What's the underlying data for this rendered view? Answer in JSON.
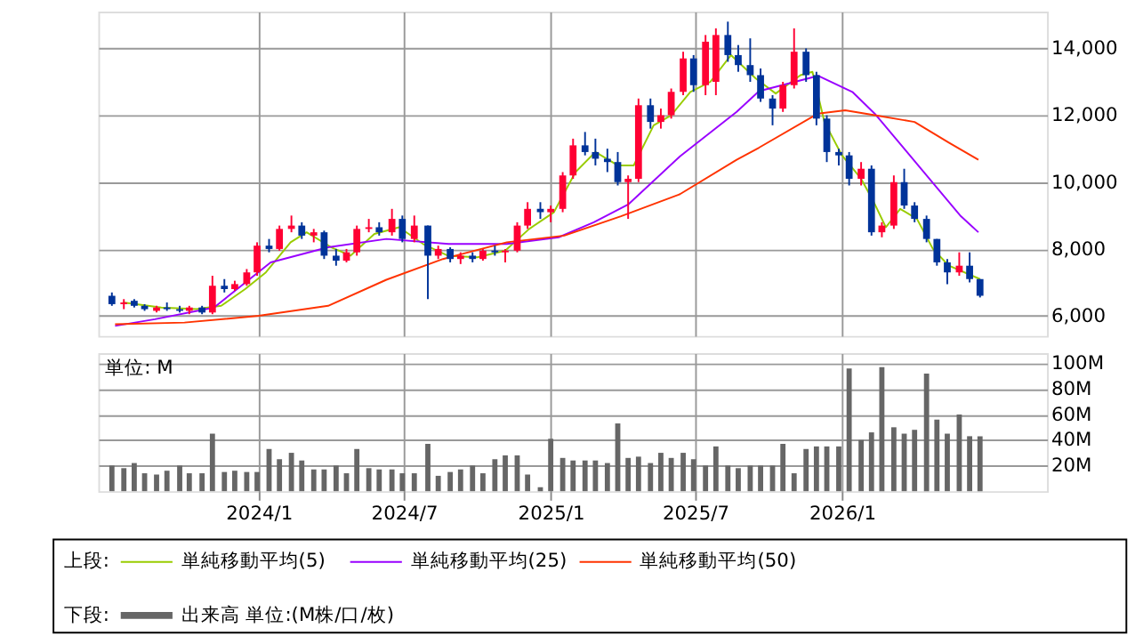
{
  "chart_data": [
    {
      "type": "candlestick",
      "legend": "bottom",
      "legend_title": "上段:",
      "grid": true,
      "tick_labels": "y",
      "x": [
        "2023-07-01",
        "2023-07-16",
        "2023-07-29",
        "2023-08-11",
        "2023-08-26",
        "2023-09-08",
        "2023-09-24",
        "2023-10-06",
        "2023-10-22",
        "2023-11-04",
        "2023-11-19",
        "2023-12-02",
        "2023-12-17",
        "2023-12-30",
        "2024-01-14",
        "2024-01-27",
        "2024-02-11",
        "2024-02-24",
        "2024-03-10",
        "2024-03-23",
        "2024-04-07",
        "2024-04-20",
        "2024-05-03",
        "2024-05-18",
        "2024-05-31",
        "2024-06-16",
        "2024-06-29",
        "2024-07-14",
        "2024-07-31",
        "2024-08-13",
        "2024-08-28",
        "2024-09-10",
        "2024-09-25",
        "2024-10-08",
        "2024-10-23",
        "2024-11-05",
        "2024-11-20",
        "2024-12-03",
        "2024-12-19",
        "2025-01-01",
        "2025-01-16",
        "2025-01-29",
        "2025-02-13",
        "2025-02-26",
        "2025-03-13",
        "2025-03-26",
        "2025-04-08",
        "2025-04-21",
        "2025-05-06",
        "2025-05-19",
        "2025-06-01",
        "2025-06-16",
        "2025-06-29",
        "2025-07-14",
        "2025-07-27",
        "2025-08-11",
        "2025-08-24",
        "2025-09-08",
        "2025-09-21",
        "2025-10-06",
        "2025-10-19",
        "2025-11-02",
        "2025-11-17",
        "2025-11-30",
        "2025-12-13",
        "2025-12-28",
        "2026-01-10",
        "2026-01-25",
        "2026-02-07",
        "2026-02-20",
        "2026-03-07",
        "2026-03-20",
        "2026-04-02",
        "2026-04-17",
        "2026-04-30",
        "2026-05-13",
        "2026-05-28",
        "2026-06-10",
        "2026-06-23"
      ],
      "ohlc": [
        [
          6600,
          6700,
          6300,
          6350
        ],
        [
          6350,
          6500,
          6200,
          6400
        ],
        [
          6450,
          6500,
          6250,
          6300
        ],
        [
          6300,
          6350,
          6150,
          6200
        ],
        [
          6150,
          6300,
          6100,
          6250
        ],
        [
          6250,
          6400,
          6150,
          6200
        ],
        [
          6200,
          6300,
          6100,
          6150
        ],
        [
          6150,
          6300,
          6050,
          6250
        ],
        [
          6250,
          6300,
          6050,
          6100
        ],
        [
          6100,
          7200,
          6050,
          6900
        ],
        [
          6900,
          7100,
          6700,
          6800
        ],
        [
          6800,
          7050,
          6750,
          6950
        ],
        [
          6950,
          7400,
          6900,
          7300
        ],
        [
          7300,
          8200,
          7200,
          8100
        ],
        [
          8100,
          8300,
          7900,
          8000
        ],
        [
          8000,
          8700,
          7950,
          8600
        ],
        [
          8600,
          9000,
          8500,
          8700
        ],
        [
          8700,
          8800,
          8300,
          8400
        ],
        [
          8400,
          8600,
          8200,
          8500
        ],
        [
          8500,
          8550,
          7700,
          7800
        ],
        [
          7800,
          8000,
          7500,
          7650
        ],
        [
          7650,
          8000,
          7600,
          7900
        ],
        [
          7900,
          8700,
          7800,
          8600
        ],
        [
          8600,
          8900,
          8500,
          8650
        ],
        [
          8650,
          8800,
          8400,
          8500
        ],
        [
          8500,
          9200,
          8400,
          8900
        ],
        [
          8900,
          9000,
          8200,
          8300
        ],
        [
          8300,
          9000,
          8200,
          8700
        ],
        [
          8700,
          8700,
          6500,
          7800
        ],
        [
          7800,
          8100,
          7700,
          8000
        ],
        [
          8000,
          8050,
          7600,
          7700
        ],
        [
          7700,
          7900,
          7550,
          7800
        ],
        [
          7800,
          7900,
          7600,
          7700
        ],
        [
          7700,
          8000,
          7650,
          7950
        ],
        [
          7950,
          8100,
          7800,
          7900
        ],
        [
          7900,
          8000,
          7600,
          7950
        ],
        [
          7950,
          8800,
          7900,
          8700
        ],
        [
          8700,
          9400,
          8600,
          9200
        ],
        [
          9200,
          9400,
          8900,
          9100
        ],
        [
          9100,
          9300,
          8800,
          9200
        ],
        [
          9200,
          10300,
          9100,
          10200
        ],
        [
          10200,
          11300,
          10100,
          11100
        ],
        [
          11100,
          11500,
          10800,
          10900
        ],
        [
          10900,
          11300,
          10500,
          10700
        ],
        [
          10700,
          11000,
          10300,
          10600
        ],
        [
          10600,
          10900,
          9900,
          10000
        ],
        [
          10000,
          10200,
          8900,
          10100
        ],
        [
          10100,
          12500,
          10000,
          12300
        ],
        [
          12300,
          12500,
          11600,
          11800
        ],
        [
          11800,
          12200,
          11600,
          12000
        ],
        [
          12000,
          12800,
          11900,
          12700
        ],
        [
          12700,
          13900,
          12600,
          13700
        ],
        [
          13700,
          13800,
          12700,
          12900
        ],
        [
          12900,
          14400,
          12600,
          14200
        ],
        [
          13000,
          14600,
          12600,
          14400
        ],
        [
          14400,
          14800,
          13600,
          13800
        ],
        [
          13800,
          14100,
          13300,
          13500
        ],
        [
          13500,
          14300,
          13000,
          13200
        ],
        [
          13200,
          13400,
          12400,
          12500
        ],
        [
          12500,
          12600,
          11700,
          12200
        ],
        [
          12200,
          13000,
          12100,
          12900
        ],
        [
          12900,
          14600,
          12800,
          13900
        ],
        [
          13900,
          14000,
          13000,
          13200
        ],
        [
          13200,
          13300,
          11700,
          11900
        ],
        [
          11900,
          12000,
          10600,
          10900
        ],
        [
          10900,
          11000,
          10500,
          10800
        ],
        [
          10800,
          10900,
          9900,
          10100
        ],
        [
          10100,
          10600,
          9900,
          10400
        ],
        [
          10400,
          10500,
          8400,
          8500
        ],
        [
          8500,
          8800,
          8350,
          8700
        ],
        [
          8700,
          10200,
          8600,
          10000
        ],
        [
          10000,
          10400,
          9200,
          9300
        ],
        [
          9300,
          9400,
          8800,
          8900
        ],
        [
          8900,
          9000,
          8200,
          8300
        ],
        [
          8300,
          8300,
          7500,
          7600
        ],
        [
          7600,
          7700,
          6950,
          7300
        ],
        [
          7300,
          7900,
          7200,
          7500
        ],
        [
          7500,
          7900,
          7000,
          7100
        ],
        [
          7100,
          7100,
          6550,
          6600
        ]
      ],
      "colors": [
        "#003399",
        "#ff0033",
        "#003399",
        "#003399",
        "#ff0033",
        "#003399",
        "#003399",
        "#ff0033",
        "#003399",
        "#ff0033",
        "#003399",
        "#ff0033",
        "#ff0033",
        "#ff0033",
        "#003399",
        "#ff0033",
        "#ff0033",
        "#003399",
        "#ff0033",
        "#003399",
        "#003399",
        "#ff0033",
        "#ff0033",
        "#ff0033",
        "#003399",
        "#ff0033",
        "#003399",
        "#ff0033",
        "#003399",
        "#ff0033",
        "#003399",
        "#ff0033",
        "#003399",
        "#ff0033",
        "#003399",
        "#ff0033",
        "#ff0033",
        "#ff0033",
        "#003399",
        "#ff0033",
        "#ff0033",
        "#ff0033",
        "#003399",
        "#003399",
        "#003399",
        "#003399",
        "#ff0033",
        "#ff0033",
        "#003399",
        "#ff0033",
        "#ff0033",
        "#ff0033",
        "#003399",
        "#ff0033",
        "#ff0033",
        "#003399",
        "#003399",
        "#003399",
        "#003399",
        "#003399",
        "#ff0033",
        "#ff0033",
        "#003399",
        "#003399",
        "#003399",
        "#003399",
        "#003399",
        "#ff0033",
        "#003399",
        "#ff0033",
        "#ff0033",
        "#003399",
        "#003399",
        "#003399",
        "#003399",
        "#003399",
        "#ff0033",
        "#003399",
        "#003399"
      ],
      "series": [
        {
          "name": "単純移動平均(5)",
          "type": "line",
          "color": "#99cc00",
          "x": [
            "2023-07-15",
            "2023-09-01",
            "2023-10-15",
            "2023-11-15",
            "2023-12-15",
            "2024-01-10",
            "2024-02-10",
            "2024-03-01",
            "2024-04-01",
            "2024-04-25",
            "2024-05-25",
            "2024-06-25",
            "2024-07-25",
            "2024-08-25",
            "2024-10-01",
            "2024-11-05",
            "2024-12-05",
            "2025-01-05",
            "2025-02-01",
            "2025-02-26",
            "2025-03-26",
            "2025-04-15",
            "2025-05-10",
            "2025-06-01",
            "2025-06-25",
            "2025-07-20",
            "2025-08-15",
            "2025-09-15",
            "2025-10-10",
            "2025-11-10",
            "2025-11-25",
            "2025-12-10",
            "2026-01-01",
            "2026-01-25",
            "2026-02-10",
            "2026-02-25",
            "2026-03-15",
            "2026-04-05",
            "2026-04-25",
            "2026-05-15",
            "2026-06-23"
          ],
          "values": [
            6400,
            6250,
            6200,
            6300,
            6800,
            7300,
            8200,
            8500,
            8050,
            7800,
            8450,
            8650,
            8150,
            7800,
            7750,
            7950,
            8600,
            9100,
            10300,
            10900,
            10500,
            10500,
            11700,
            12000,
            12700,
            13000,
            13800,
            13100,
            12650,
            13200,
            13300,
            11800,
            10800,
            10100,
            9400,
            8650,
            9200,
            8900,
            8000,
            7500,
            7100
          ]
        },
        {
          "name": "単純移動平均(25)",
          "type": "line",
          "color": "#9900ff",
          "x": [
            "2023-07-05",
            "2023-08-24",
            "2023-11-06",
            "2024-01-16",
            "2024-03-28",
            "2024-06-09",
            "2024-08-26",
            "2024-11-07",
            "2025-01-11",
            "2025-02-24",
            "2025-04-08",
            "2025-06-12",
            "2025-08-22",
            "2025-09-19",
            "2025-12-02",
            "2026-01-14",
            "2026-02-11",
            "2026-03-20",
            "2026-04-24",
            "2026-05-30",
            "2026-06-21"
          ],
          "values": [
            5700,
            5900,
            6250,
            7600,
            8050,
            8300,
            8150,
            8150,
            8350,
            8800,
            9330,
            10770,
            12100,
            12720,
            13180,
            12700,
            12050,
            11000,
            10000,
            8980,
            8500
          ]
        },
        {
          "name": "単純移動平均(50)",
          "type": "line",
          "color": "#ff3300",
          "x": [
            "2023-07-05",
            "2023-09-30",
            "2024-01-01",
            "2024-03-28",
            "2024-06-09",
            "2024-08-19",
            "2024-11-07",
            "2025-01-18",
            "2025-03-30",
            "2025-06-12",
            "2025-08-22",
            "2025-09-19",
            "2025-12-02",
            "2026-01-05",
            "2026-02-11",
            "2026-04-02",
            "2026-05-15",
            "2026-06-21"
          ],
          "values": [
            5750,
            5800,
            6000,
            6300,
            7080,
            7700,
            8200,
            8400,
            8980,
            9640,
            10670,
            11030,
            12050,
            12150,
            12000,
            11800,
            11180,
            10670
          ]
        }
      ],
      "xlim": [
        "2023-06-14",
        "2026-09-15"
      ],
      "xticks": [
        {
          "value": "2024-01-01",
          "label": null
        },
        {
          "value": "2024-07-01",
          "label": null
        },
        {
          "value": "2025-01-01",
          "label": null
        },
        {
          "value": "2025-07-01",
          "label": null
        },
        {
          "value": "2026-01-01",
          "label": null
        }
      ],
      "ylim": [
        5400,
        15100
      ],
      "yticks": [
        {
          "value": 6000,
          "label": "6,000"
        },
        {
          "value": 8000,
          "label": "8,000"
        },
        {
          "value": 10000,
          "label": "10,000"
        },
        {
          "value": 12000,
          "label": "12,000"
        },
        {
          "value": 14000,
          "label": "14,000"
        }
      ]
    },
    {
      "type": "bar",
      "legend": "bottom",
      "legend_title": "下段:",
      "grid": true,
      "annotations": [
        "単位: M"
      ],
      "x": [
        "2023-07-01",
        "2023-07-16",
        "2023-07-29",
        "2023-08-11",
        "2023-08-26",
        "2023-09-08",
        "2023-09-24",
        "2023-10-06",
        "2023-10-22",
        "2023-11-04",
        "2023-11-19",
        "2023-12-02",
        "2023-12-17",
        "2023-12-30",
        "2024-01-14",
        "2024-01-27",
        "2024-02-11",
        "2024-02-24",
        "2024-03-10",
        "2024-03-23",
        "2024-04-07",
        "2024-04-20",
        "2024-05-03",
        "2024-05-18",
        "2024-05-31",
        "2024-06-16",
        "2024-06-29",
        "2024-07-14",
        "2024-07-31",
        "2024-08-13",
        "2024-08-28",
        "2024-09-10",
        "2024-09-25",
        "2024-10-08",
        "2024-10-23",
        "2024-11-05",
        "2024-11-20",
        "2024-12-03",
        "2024-12-19",
        "2025-01-01",
        "2025-01-16",
        "2025-01-29",
        "2025-02-13",
        "2025-02-26",
        "2025-03-13",
        "2025-03-26",
        "2025-04-08",
        "2025-04-21",
        "2025-05-06",
        "2025-05-19",
        "2025-06-01",
        "2025-06-16",
        "2025-06-29",
        "2025-07-14",
        "2025-07-27",
        "2025-08-11",
        "2025-08-24",
        "2025-09-08",
        "2025-09-21",
        "2025-10-06",
        "2025-10-19",
        "2025-11-02",
        "2025-11-17",
        "2025-11-30",
        "2025-12-13",
        "2025-12-28",
        "2026-01-10",
        "2026-01-25",
        "2026-02-07",
        "2026-02-20",
        "2026-03-07",
        "2026-03-20",
        "2026-04-02",
        "2026-04-17",
        "2026-04-30",
        "2026-05-13",
        "2026-05-28",
        "2026-06-10",
        "2026-06-23"
      ],
      "series": [
        {
          "name": "出来高 単位:(M株/口/枚)",
          "color": "#666666",
          "values": [
            20,
            18,
            22,
            14,
            13,
            16,
            20,
            14,
            14,
            45,
            15,
            16,
            15,
            15,
            33,
            25,
            30,
            24,
            17,
            17,
            20,
            14,
            33,
            18,
            17,
            17,
            14,
            14,
            37,
            12,
            15,
            17,
            20,
            14,
            25,
            28,
            28,
            13,
            3,
            41,
            26,
            24,
            24,
            24,
            22,
            53,
            26,
            27,
            22,
            30,
            26,
            30,
            25,
            20,
            35,
            20,
            18,
            20,
            20,
            20,
            37,
            14,
            33,
            35,
            35,
            35,
            96,
            40,
            46,
            97,
            50,
            45,
            48,
            92,
            56,
            45,
            60,
            43,
            43
          ]
        }
      ],
      "xlim": [
        "2023-06-14",
        "2026-09-15"
      ],
      "xticks": [
        {
          "value": "2024-01-01",
          "label": "2024/1"
        },
        {
          "value": "2024-07-01",
          "label": "2024/7"
        },
        {
          "value": "2025-01-01",
          "label": "2025/1"
        },
        {
          "value": "2025-07-01",
          "label": "2025/7"
        },
        {
          "value": "2026-01-01",
          "label": "2026/1"
        }
      ],
      "ylim": [
        0,
        108
      ],
      "yticks": [
        {
          "value": 20,
          "label": "20M"
        },
        {
          "value": 40,
          "label": "40M"
        },
        {
          "value": 60,
          "label": "60M"
        },
        {
          "value": 80,
          "label": "80M"
        },
        {
          "value": 100,
          "label": "100M"
        }
      ]
    }
  ]
}
